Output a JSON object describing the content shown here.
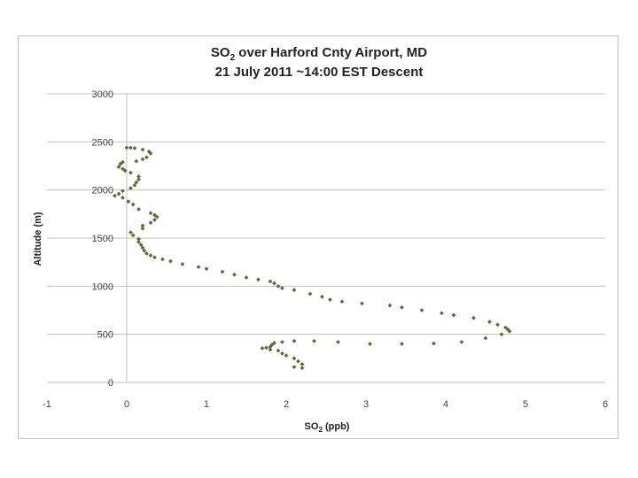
{
  "chart_data": {
    "type": "scatter",
    "title_prefix": "SO",
    "title_sub": "2",
    "title_suffix": " over Harford Cnty Airport, MD",
    "subtitle": "21 July 2011  ~14:00 EST Descent",
    "xlabel_prefix": "SO",
    "xlabel_sub": "2",
    "xlabel_suffix": " (ppb)",
    "ylabel": "Altitude (m)",
    "xlim": [
      -1,
      6
    ],
    "ylim": [
      0,
      3000
    ],
    "xticks": [
      "-1",
      "0",
      "1",
      "2",
      "3",
      "4",
      "5",
      "6"
    ],
    "yticks": [
      "0",
      "500",
      "1000",
      "1500",
      "2000",
      "2500",
      "3000"
    ],
    "grid": "horizontal",
    "marker_color": "#5a6b3a",
    "points": [
      [
        0.0,
        2440
      ],
      [
        0.05,
        2440
      ],
      [
        0.1,
        2435
      ],
      [
        0.2,
        2420
      ],
      [
        0.28,
        2400
      ],
      [
        0.3,
        2380
      ],
      [
        0.25,
        2340
      ],
      [
        0.2,
        2320
      ],
      [
        0.12,
        2300
      ],
      [
        -0.05,
        2290
      ],
      [
        -0.08,
        2270
      ],
      [
        -0.1,
        2240
      ],
      [
        -0.05,
        2220
      ],
      [
        -0.02,
        2200
      ],
      [
        0.05,
        2180
      ],
      [
        0.15,
        2140
      ],
      [
        0.15,
        2110
      ],
      [
        0.12,
        2080
      ],
      [
        0.1,
        2050
      ],
      [
        0.05,
        2020
      ],
      [
        -0.05,
        1990
      ],
      [
        -0.1,
        1960
      ],
      [
        -0.15,
        1940
      ],
      [
        -0.05,
        1920
      ],
      [
        0.02,
        1880
      ],
      [
        0.08,
        1850
      ],
      [
        0.15,
        1800
      ],
      [
        0.3,
        1760
      ],
      [
        0.35,
        1740
      ],
      [
        0.38,
        1720
      ],
      [
        0.35,
        1690
      ],
      [
        0.3,
        1660
      ],
      [
        0.2,
        1630
      ],
      [
        0.2,
        1600
      ],
      [
        0.05,
        1560
      ],
      [
        0.08,
        1530
      ],
      [
        0.15,
        1490
      ],
      [
        0.15,
        1460
      ],
      [
        0.18,
        1430
      ],
      [
        0.2,
        1400
      ],
      [
        0.22,
        1370
      ],
      [
        0.25,
        1340
      ],
      [
        0.3,
        1320
      ],
      [
        0.35,
        1300
      ],
      [
        0.45,
        1280
      ],
      [
        0.55,
        1260
      ],
      [
        0.7,
        1230
      ],
      [
        0.9,
        1200
      ],
      [
        1.0,
        1180
      ],
      [
        1.2,
        1150
      ],
      [
        1.35,
        1120
      ],
      [
        1.5,
        1090
      ],
      [
        1.65,
        1070
      ],
      [
        1.8,
        1050
      ],
      [
        1.85,
        1030
      ],
      [
        1.9,
        1000
      ],
      [
        1.95,
        980
      ],
      [
        2.1,
        960
      ],
      [
        2.3,
        920
      ],
      [
        2.45,
        890
      ],
      [
        2.55,
        860
      ],
      [
        2.7,
        840
      ],
      [
        2.95,
        820
      ],
      [
        3.3,
        800
      ],
      [
        3.45,
        780
      ],
      [
        3.7,
        750
      ],
      [
        3.95,
        720
      ],
      [
        4.1,
        700
      ],
      [
        4.35,
        670
      ],
      [
        4.55,
        630
      ],
      [
        4.65,
        600
      ],
      [
        4.75,
        570
      ],
      [
        4.78,
        550
      ],
      [
        4.8,
        530
      ],
      [
        4.7,
        500
      ],
      [
        4.5,
        460
      ],
      [
        4.2,
        420
      ],
      [
        3.85,
        405
      ],
      [
        3.45,
        400
      ],
      [
        3.05,
        400
      ],
      [
        2.65,
        420
      ],
      [
        2.35,
        430
      ],
      [
        2.1,
        430
      ],
      [
        1.95,
        420
      ],
      [
        1.85,
        410
      ],
      [
        1.82,
        390
      ],
      [
        1.8,
        370
      ],
      [
        1.75,
        360
      ],
      [
        1.7,
        355
      ],
      [
        1.8,
        340
      ],
      [
        1.9,
        330
      ],
      [
        1.95,
        300
      ],
      [
        2.0,
        280
      ],
      [
        2.1,
        250
      ],
      [
        2.15,
        220
      ],
      [
        2.2,
        190
      ],
      [
        2.1,
        160
      ],
      [
        2.2,
        150
      ]
    ]
  }
}
